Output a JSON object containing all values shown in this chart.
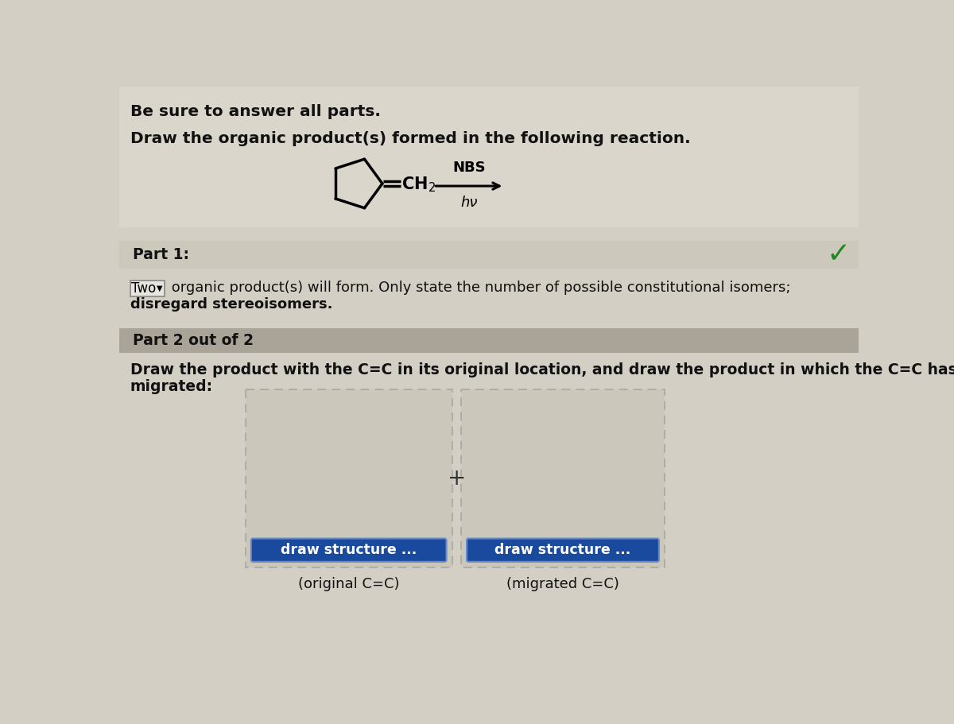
{
  "bg_color": "#d4cfc5",
  "bg_top_color": "#dedad2",
  "text_color": "#111111",
  "line1": "Be sure to answer all parts.",
  "line2": "Draw the organic product(s) formed in the following reaction.",
  "nbs_label": "NBS",
  "hv_label": "hν",
  "part1_label": "Part 1:",
  "part1_text1": "Two",
  "part1_text2": " organic product(s) will form. Only state the number of possible constitutional isomers;",
  "part1_text3": "disregard stereoisomers.",
  "part2_header": "Part 2 out of 2",
  "part2_line1": "Draw the product with the C=C in its original location, and draw the product in which the C=C has",
  "part2_line2": "migrated:",
  "btn_text": "draw structure ...",
  "btn_color": "#1a4a9e",
  "btn_text_color": "#ffffff",
  "label1": "(original C=C)",
  "label2": "(migrated C=C)",
  "plus_sign": "+",
  "checkmark_color": "#228822",
  "part1_bg": "#ccc8bc",
  "part2_header_bg": "#aaa498",
  "box_border_color": "#aaaaaa",
  "box_fill": "#ccc7bb"
}
